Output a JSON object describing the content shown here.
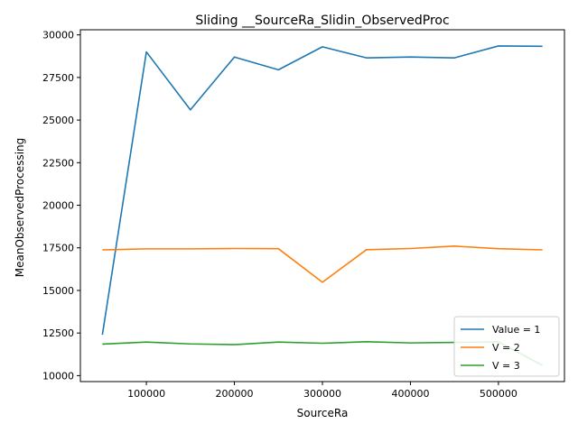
{
  "chart_data": {
    "type": "line",
    "title": "Sliding __SourceRa_Slidin_ObservedProc",
    "xlabel": "SourceRa",
    "ylabel": "MeanObservedProcessing",
    "xlim": [
      25000,
      575000
    ],
    "ylim": [
      9650,
      30300
    ],
    "x_ticks": [
      100000,
      200000,
      300000,
      400000,
      500000
    ],
    "y_ticks": [
      10000,
      12500,
      15000,
      17500,
      20000,
      22500,
      25000,
      27500,
      30000
    ],
    "x": [
      50000,
      100000,
      150000,
      200000,
      250000,
      300000,
      350000,
      400000,
      450000,
      500000,
      550000
    ],
    "series": [
      {
        "name": "Value = 1",
        "color": "#1f77b4",
        "values": [
          12400,
          29000,
          25600,
          28700,
          27950,
          29300,
          28650,
          28700,
          28650,
          29350,
          29330
        ]
      },
      {
        "name": "V = 2",
        "color": "#ff7f0e",
        "values": [
          17380,
          17440,
          17440,
          17460,
          17450,
          15480,
          17390,
          17460,
          17600,
          17450,
          17380
        ]
      },
      {
        "name": "V = 3",
        "color": "#2ca02c",
        "values": [
          11850,
          11970,
          11860,
          11820,
          11970,
          11900,
          11990,
          11920,
          11950,
          11980,
          10600
        ]
      }
    ],
    "legend_position": "lower-right",
    "grid": false
  }
}
